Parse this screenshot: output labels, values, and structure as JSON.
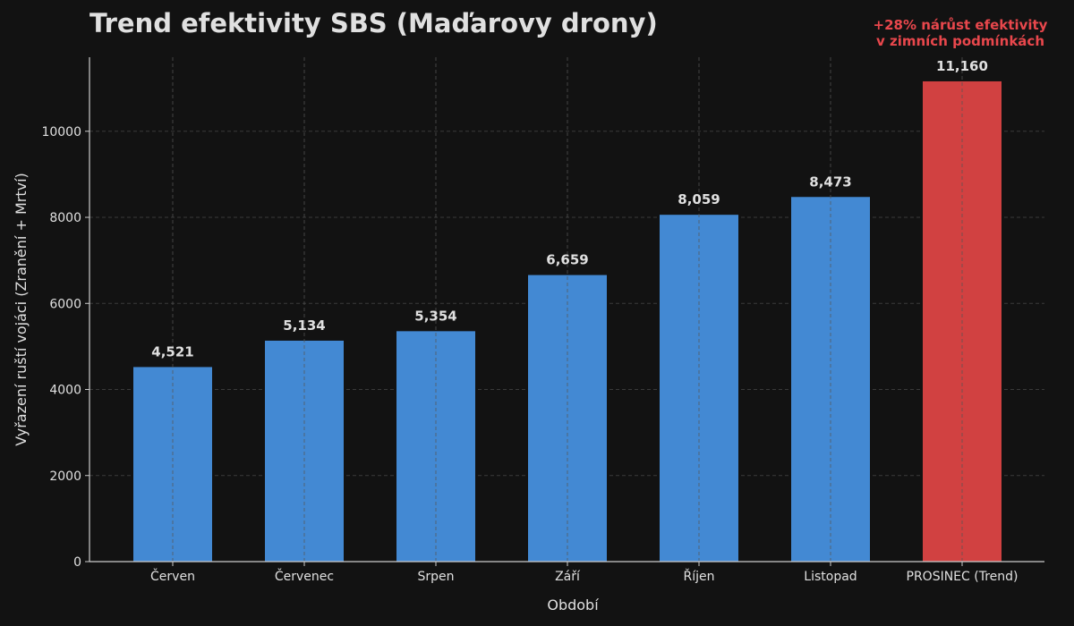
{
  "chart_data": {
    "type": "bar",
    "title": "Trend efektivity SBS (Maďarovy drony)",
    "xlabel": "Období",
    "ylabel": "Vyřazení ruští vojáci (Zranění + Mrtví)",
    "categories": [
      "Červen",
      "Červenec",
      "Srpen",
      "Září",
      "Říjen",
      "Listopad",
      "PROSINEC (Trend)"
    ],
    "values": [
      4521,
      5134,
      5354,
      6659,
      8059,
      8473,
      11160
    ],
    "value_labels": [
      "4,521",
      "5,134",
      "5,354",
      "6,659",
      "8,059",
      "8,473",
      "11,160"
    ],
    "bar_colors": [
      "#4389d3",
      "#4389d3",
      "#4389d3",
      "#4389d3",
      "#4389d3",
      "#4389d3",
      "#d14141"
    ],
    "ylim": [
      0,
      11720
    ],
    "yticks": [
      0,
      2000,
      4000,
      6000,
      8000,
      10000
    ],
    "grid": true,
    "annotation": {
      "lines": [
        "+28% nárůst efektivity",
        "v zimních podmínkách"
      ],
      "color": "#e8474c"
    },
    "colors": {
      "background": "#121212",
      "text": "#e0e0e0",
      "grid": "#3a3a3a",
      "axis": "#cccccc"
    }
  }
}
